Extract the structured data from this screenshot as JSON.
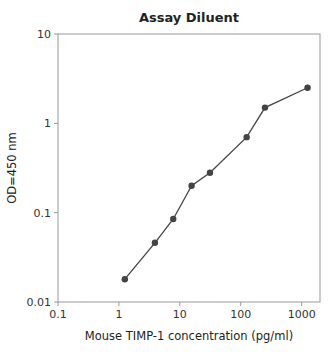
{
  "chart_data": {
    "type": "line",
    "title": "Assay Diluent",
    "xlabel": "Mouse TIMP-1 concentration (pg/ml)",
    "ylabel": "OD=450 nm",
    "x": [
      1.25,
      3.9,
      7.8,
      15.6,
      31.25,
      125,
      250,
      1250
    ],
    "values": [
      0.018,
      0.046,
      0.085,
      0.2,
      0.28,
      0.7,
      1.5,
      2.5
    ],
    "color": "#444444",
    "marker": "circle",
    "log": true,
    "grid": false,
    "xlim": [
      0.1,
      2000
    ],
    "ylim": [
      0.01,
      10
    ],
    "xticks": [
      0.1,
      1,
      10,
      100,
      1000
    ],
    "yticks": [
      0.01,
      0.1,
      1,
      10
    ]
  }
}
